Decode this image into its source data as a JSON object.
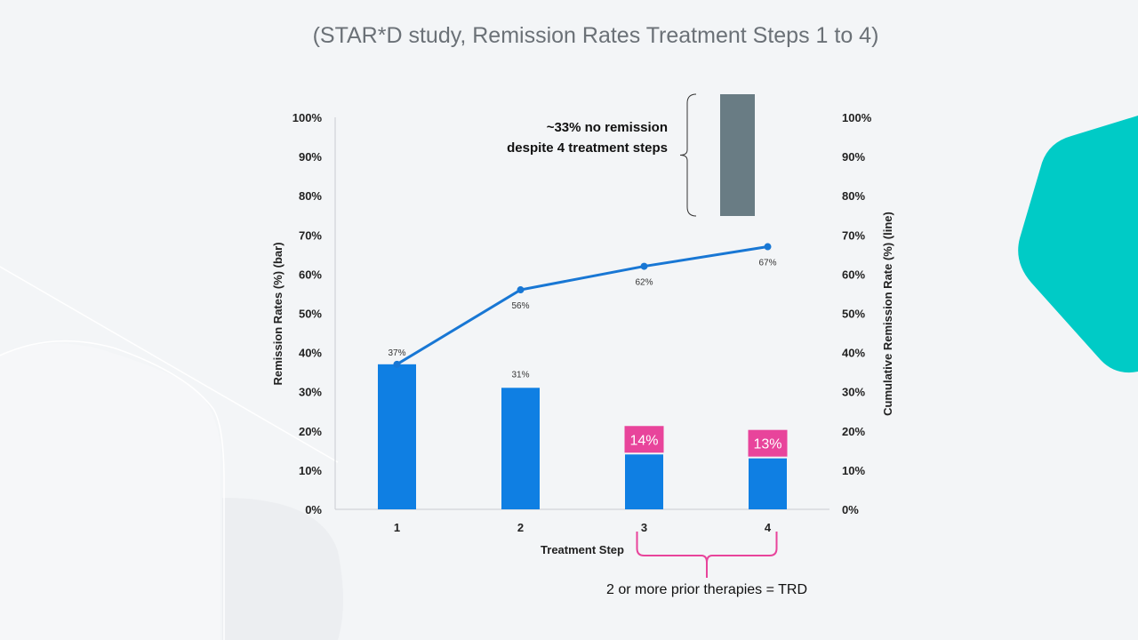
{
  "slide": {
    "title": "(STAR*D study, Remission Rates Treatment Steps 1 to 4)",
    "colors": {
      "background": "#f3f5f7",
      "bar": "#0f7fe3",
      "line": "#1877d4",
      "highlight": "#e8449b",
      "no_remission_bar": "#697c84",
      "teal_shape": "#00cbc6"
    }
  },
  "chart_data": {
    "type": "bar",
    "xlabel": "Treatment Step",
    "ylabel": "Remission Rates (%) (bar)",
    "y2label": "Cumulative Remission Rate (%) (line)",
    "ylim": [
      0,
      100
    ],
    "y2lim": [
      0,
      100
    ],
    "yticks": [
      "0%",
      "10%",
      "20%",
      "30%",
      "40%",
      "50%",
      "60%",
      "70%",
      "80%",
      "90%",
      "100%"
    ],
    "y2ticks": [
      "0%",
      "10%",
      "20%",
      "30%",
      "40%",
      "50%",
      "60%",
      "70%",
      "80%",
      "90%",
      "100%"
    ],
    "categories": [
      "1",
      "2",
      "3",
      "4"
    ],
    "series": [
      {
        "name": "Remission Rates (%) (bar)",
        "kind": "bar",
        "values": [
          37,
          31,
          14,
          13
        ],
        "labels": [
          "",
          "31%",
          "14%",
          "13%"
        ],
        "highlighted": [
          false,
          false,
          true,
          true
        ]
      },
      {
        "name": "Cumulative Remission Rate (%) (line)",
        "kind": "line",
        "values": [
          37,
          56,
          62,
          67
        ],
        "labels": [
          "37%",
          "56%",
          "62%",
          "67%"
        ]
      }
    ],
    "annotations": {
      "no_remission_value": 33,
      "no_remission_line1": "~33% no remission",
      "no_remission_line2": "despite 4 treatment steps",
      "trd_label": "2 or more prior therapies = TRD",
      "trd_steps": [
        "3",
        "4"
      ]
    }
  }
}
